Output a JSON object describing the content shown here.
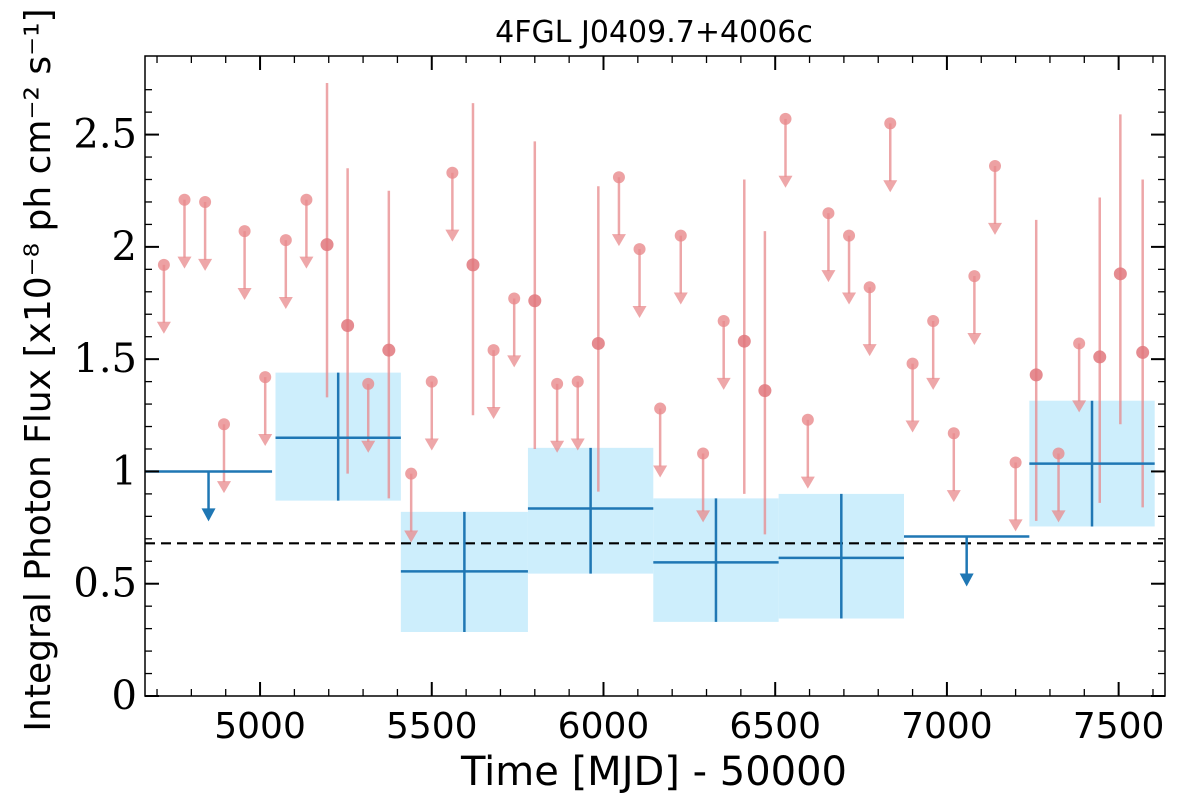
{
  "chart_data": {
    "type": "scatter",
    "title": "4FGL J0409.7+4006c",
    "xlabel": "Time [MJD] - 50000",
    "ylabel": "Integral Photon Flux [x10⁻⁸ ph cm⁻² s⁻¹]",
    "xlim": [
      4665,
      7635
    ],
    "ylim": [
      0,
      2.85
    ],
    "xticks": [
      5000,
      5500,
      6000,
      6500,
      7000,
      7500
    ],
    "xtick_labels": [
      "5000",
      "5500",
      "6000",
      "6500",
      "7000",
      "7500"
    ],
    "yticks": [
      0,
      0.5,
      1,
      1.5,
      2,
      2.5
    ],
    "ytick_labels": [
      "0",
      "0.5",
      "1",
      "1.5",
      "2",
      "2.5"
    ],
    "reference_line": {
      "y": 0.68,
      "style": "dashed",
      "color": "#000000"
    },
    "colors": {
      "long_bins": "#1f77b4",
      "long_band": "#cdeefc",
      "short_bins": "#e8898c"
    },
    "series": [
      {
        "points": [
          {
            "x": 4700,
            "x_err": [
              4665,
              5035
            ],
            "y": 1.0,
            "upper_limit": true
          },
          {
            "x": 5230,
            "x_err": [
              5045,
              5410
            ],
            "y": 1.15,
            "y_err": [
              0.87,
              1.44
            ]
          },
          {
            "x": 5595,
            "x_err": [
              5410,
              5780
            ],
            "y": 0.555,
            "y_err": [
              0.285,
              0.82
            ]
          },
          {
            "x": 5960,
            "x_err": [
              5780,
              6145
            ],
            "y": 0.835,
            "y_err": [
              0.545,
              1.105
            ]
          },
          {
            "x": 6330,
            "x_err": [
              6145,
              6510
            ],
            "y": 0.595,
            "y_err": [
              0.33,
              0.88
            ]
          },
          {
            "x": 6695,
            "x_err": [
              6510,
              6875
            ],
            "y": 0.615,
            "y_err": [
              0.345,
              0.9
            ]
          },
          {
            "x": 7055,
            "x_err": [
              6875,
              7240
            ],
            "y": 0.71,
            "upper_limit": true
          },
          {
            "x": 7425,
            "x_err": [
              7240,
              7605
            ],
            "y": 1.035,
            "y_err": [
              0.755,
              1.315
            ]
          }
        ]
      },
      {
        "points": [
          {
            "x": 4720,
            "y": 1.92,
            "upper_limit": true
          },
          {
            "x": 4780,
            "y": 2.21,
            "upper_limit": true
          },
          {
            "x": 4840,
            "y": 2.2,
            "upper_limit": true
          },
          {
            "x": 4895,
            "y": 1.21,
            "upper_limit": true
          },
          {
            "x": 4955,
            "y": 2.07,
            "upper_limit": true
          },
          {
            "x": 5015,
            "y": 1.42,
            "upper_limit": true
          },
          {
            "x": 5075,
            "y": 2.03,
            "upper_limit": true
          },
          {
            "x": 5135,
            "y": 2.21,
            "upper_limit": true
          },
          {
            "x": 5195,
            "y": 2.01,
            "y_err": [
              1.33,
              2.73
            ]
          },
          {
            "x": 5255,
            "y": 1.65,
            "y_err": [
              0.99,
              2.35
            ]
          },
          {
            "x": 5315,
            "y": 1.39,
            "upper_limit": true
          },
          {
            "x": 5375,
            "y": 1.54,
            "y_err": [
              0.88,
              2.25
            ]
          },
          {
            "x": 5440,
            "y": 0.99,
            "upper_limit": true
          },
          {
            "x": 5500,
            "y": 1.4,
            "upper_limit": true
          },
          {
            "x": 5560,
            "y": 2.33,
            "upper_limit": true
          },
          {
            "x": 5620,
            "y": 1.92,
            "y_err": [
              1.25,
              2.64
            ]
          },
          {
            "x": 5680,
            "y": 1.54,
            "upper_limit": true
          },
          {
            "x": 5740,
            "y": 1.77,
            "upper_limit": true
          },
          {
            "x": 5800,
            "y": 1.76,
            "y_err": [
              1.1,
              2.47
            ]
          },
          {
            "x": 5865,
            "y": 1.39,
            "upper_limit": true
          },
          {
            "x": 5925,
            "y": 1.4,
            "upper_limit": true
          },
          {
            "x": 5985,
            "y": 1.57,
            "y_err": [
              0.91,
              2.27
            ]
          },
          {
            "x": 6045,
            "y": 2.31,
            "upper_limit": true
          },
          {
            "x": 6105,
            "y": 1.99,
            "upper_limit": true
          },
          {
            "x": 6165,
            "y": 1.28,
            "upper_limit": true
          },
          {
            "x": 6225,
            "y": 2.05,
            "upper_limit": true
          },
          {
            "x": 6290,
            "y": 1.08,
            "upper_limit": true
          },
          {
            "x": 6350,
            "y": 1.67,
            "upper_limit": true
          },
          {
            "x": 6410,
            "y": 1.58,
            "y_err": [
              0.9,
              2.3
            ]
          },
          {
            "x": 6470,
            "y": 1.36,
            "y_err": [
              0.72,
              2.07
            ]
          },
          {
            "x": 6530,
            "y": 2.57,
            "upper_limit": true
          },
          {
            "x": 6595,
            "y": 1.23,
            "upper_limit": true
          },
          {
            "x": 6655,
            "y": 2.15,
            "upper_limit": true
          },
          {
            "x": 6715,
            "y": 2.05,
            "upper_limit": true
          },
          {
            "x": 6775,
            "y": 1.82,
            "upper_limit": true
          },
          {
            "x": 6835,
            "y": 2.55,
            "upper_limit": true
          },
          {
            "x": 6900,
            "y": 1.48,
            "upper_limit": true
          },
          {
            "x": 6960,
            "y": 1.67,
            "upper_limit": true
          },
          {
            "x": 7020,
            "y": 1.17,
            "upper_limit": true
          },
          {
            "x": 7080,
            "y": 1.87,
            "upper_limit": true
          },
          {
            "x": 7140,
            "y": 2.36,
            "upper_limit": true
          },
          {
            "x": 7200,
            "y": 1.04,
            "upper_limit": true
          },
          {
            "x": 7260,
            "y": 1.43,
            "y_err": [
              0.78,
              2.12
            ]
          },
          {
            "x": 7325,
            "y": 1.08,
            "upper_limit": true
          },
          {
            "x": 7385,
            "y": 1.57,
            "upper_limit": true
          },
          {
            "x": 7445,
            "y": 1.51,
            "y_err": [
              0.86,
              2.22
            ]
          },
          {
            "x": 7505,
            "y": 1.88,
            "y_err": [
              1.21,
              2.59
            ]
          },
          {
            "x": 7570,
            "y": 1.53,
            "y_err": [
              0.84,
              2.3
            ]
          }
        ]
      }
    ]
  }
}
